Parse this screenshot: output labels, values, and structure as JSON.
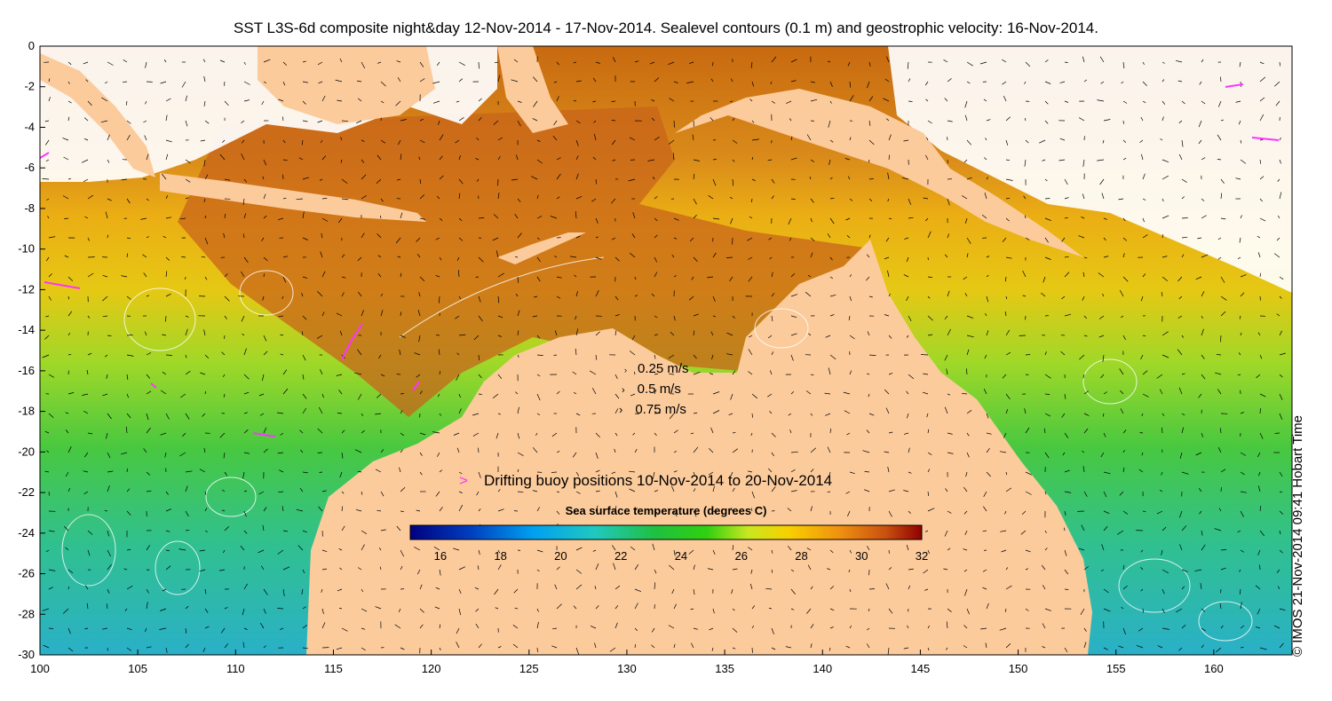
{
  "title": "SST L3S-6d composite night&day 12-Nov-2014 - 17-Nov-2014. Sealevel contours (0.1 m) and geostrophic velocity: 16-Nov-2014.",
  "copyright": "© IMOS 21-Nov-2014 09:41 Hobart Time",
  "axes": {
    "x_ticks": [
      "100",
      "105",
      "110",
      "115",
      "120",
      "125",
      "130",
      "135",
      "140",
      "145",
      "150",
      "155",
      "160"
    ],
    "y_ticks": [
      "0",
      "-2",
      "-4",
      "-6",
      "-8",
      "-10",
      "-12",
      "-14",
      "-16",
      "-18",
      "-20",
      "-22",
      "-24",
      "-26",
      "-28",
      "-30"
    ],
    "lon_range": [
      100,
      164
    ],
    "lat_range": [
      -30,
      0
    ]
  },
  "velocity_legend": [
    {
      "glyph": "›",
      "label": "0.25 m/s"
    },
    {
      "glyph": "›",
      "label": "0.5 m/s"
    },
    {
      "glyph": "›",
      "label": "0.75 m/s"
    }
  ],
  "buoy_legend": {
    "glyph": ">",
    "label": "Drifting buoy positions 10-Nov-2014 to 20-Nov-2014"
  },
  "colorbar": {
    "title": "Sea surface temperature (degrees C)",
    "range": [
      15,
      32
    ],
    "ticks": [
      "16",
      "18",
      "20",
      "22",
      "24",
      "26",
      "28",
      "30",
      "32"
    ]
  },
  "colors": {
    "land": "#fccb9c",
    "cloud": "#ffffff",
    "buoy": "#ff33ff",
    "contour": "#ffffff"
  }
}
